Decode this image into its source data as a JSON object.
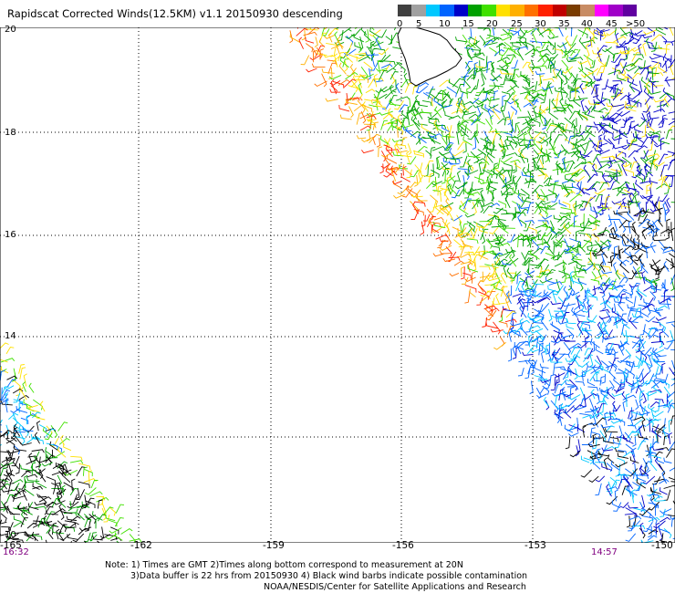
{
  "title": "Rapidscat Corrected Winds(12.5KM) v1.1 20150930 descending",
  "legend": {
    "tick_labels": [
      "0",
      "5",
      "10",
      "15",
      "20",
      "25",
      "30",
      "35",
      "40",
      "45",
      ">50 knots"
    ],
    "colors": [
      "#404040",
      "#a0a0a0",
      "#00c8ff",
      "#0064ff",
      "#0000c8",
      "#00a000",
      "#40e000",
      "#ffe000",
      "#ffb000",
      "#ff7000",
      "#ff2000",
      "#c00000",
      "#7a3c00",
      "#c88c64",
      "#ff00ff",
      "#a000c8",
      "#6000a0"
    ]
  },
  "map": {
    "lat_labels": [
      "20",
      "18",
      "16",
      "14",
      "12",
      "10"
    ],
    "lon_labels": [
      "-165",
      "-162",
      "-159",
      "-156",
      "-153",
      "-150"
    ],
    "lat_range": [
      10,
      20
    ],
    "lon_range": [
      -165,
      -150
    ],
    "landmass": "Hawaii (Big Island)"
  },
  "times": {
    "left": "16:32",
    "right": "14:57"
  },
  "notes": {
    "line1": "Note: 1) Times are GMT 2)Times along bottom correspond to measurement at 20N",
    "line2": "3)Data buffer is 22 hrs from 20150930 4) Black wind barbs indicate possible contamination",
    "line3": "NOAA/NESDIS/Center for Satellite Applications and Research"
  }
}
